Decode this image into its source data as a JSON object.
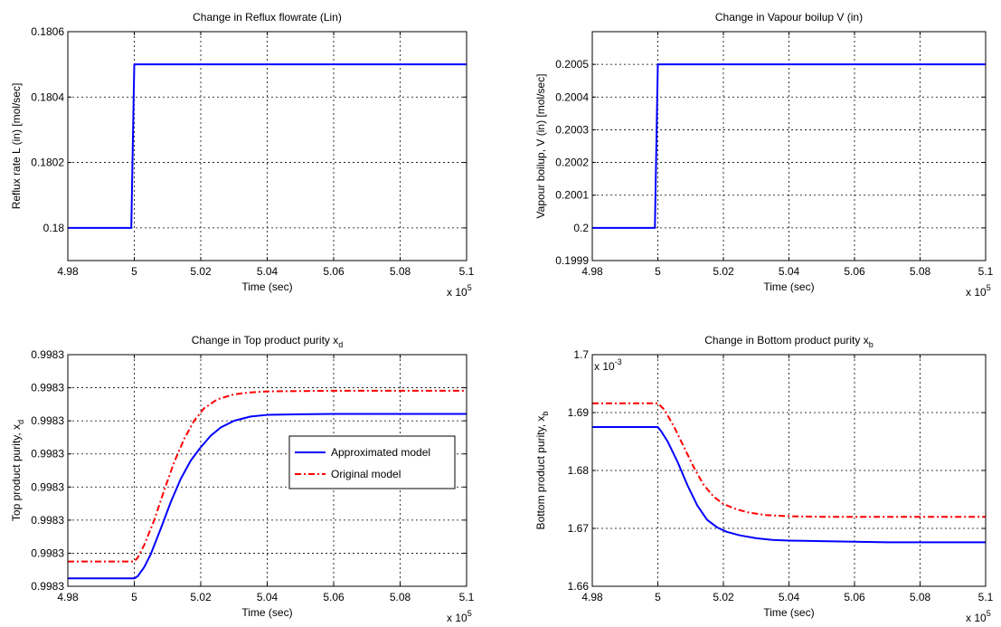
{
  "chart_data": [
    {
      "type": "line",
      "title": "Change in Reflux flowrate (Lin)",
      "xlabel": "Time (sec)",
      "ylabel": "Reflux rate L (in) [mol/sec]",
      "x_exponent": "x 10",
      "x_exponent_power": "5",
      "xlim": [
        4.98,
        5.1
      ],
      "ylim": [
        0.1799,
        0.1806
      ],
      "xticks": [
        4.98,
        5,
        5.02,
        5.04,
        5.06,
        5.08,
        5.1
      ],
      "xtick_labels": [
        "4.98",
        "5",
        "5.02",
        "5.04",
        "5.06",
        "5.08",
        "5.1"
      ],
      "yticks": [
        0.18,
        0.1802,
        0.1804,
        0.1806
      ],
      "ytick_labels": [
        "0.18",
        "0.1802",
        "0.1804",
        "0.1806"
      ],
      "grid": true,
      "series": [
        {
          "color": "#0000ff",
          "style": "solid",
          "x": [
            4.98,
            4.9991,
            5.0,
            5.1
          ],
          "y": [
            0.18,
            0.18,
            0.1805,
            0.1805
          ]
        }
      ]
    },
    {
      "type": "line",
      "title": "Change in Vapour boilup V (in)",
      "xlabel": "Time (sec)",
      "ylabel": "Vapour boilup, V (in) [mol/sec]",
      "x_exponent": "x 10",
      "x_exponent_power": "5",
      "xlim": [
        4.98,
        5.1
      ],
      "ylim": [
        0.1999,
        0.2006
      ],
      "xticks": [
        4.98,
        5,
        5.02,
        5.04,
        5.06,
        5.08,
        5.1
      ],
      "xtick_labels": [
        "4.98",
        "5",
        "5.02",
        "5.04",
        "5.06",
        "5.08",
        "5.1"
      ],
      "yticks": [
        0.1999,
        0.2,
        0.2001,
        0.2002,
        0.2003,
        0.2004,
        0.2005
      ],
      "ytick_labels": [
        "0.1999",
        "0.2",
        "0.2001",
        "0.2002",
        "0.2003",
        "0.2004",
        "0.2005"
      ],
      "grid": true,
      "series": [
        {
          "color": "#0000ff",
          "style": "solid",
          "x": [
            4.98,
            4.9991,
            5.0,
            5.1
          ],
          "y": [
            0.2,
            0.2,
            0.2005,
            0.2005
          ]
        }
      ]
    },
    {
      "type": "line",
      "title": "Change in Top product purity x",
      "title_sub": "d",
      "xlabel": "Time (sec)",
      "ylabel": "Top product purity, x",
      "ylabel_sub": "d",
      "x_exponent": "x 10",
      "x_exponent_power": "5",
      "xlim": [
        4.98,
        5.1
      ],
      "ylim": [
        0,
        7
      ],
      "xticks": [
        4.98,
        5,
        5.02,
        5.04,
        5.06,
        5.08,
        5.1
      ],
      "xtick_labels": [
        "4.98",
        "5",
        "5.02",
        "5.04",
        "5.06",
        "5.08",
        "5.1"
      ],
      "yticks": [
        0,
        1,
        2,
        3,
        4,
        5,
        6,
        7
      ],
      "ytick_labels": [
        "0.9983",
        "0.9983",
        "0.9983",
        "0.9983",
        "0.9983",
        "0.9983",
        "0.9983",
        "0.9983"
      ],
      "grid": true,
      "legend": {
        "position": "center-right",
        "entries": [
          "Approximated model",
          "Original model"
        ]
      },
      "series": [
        {
          "name": "Approximated model",
          "color": "#0000ff",
          "style": "solid",
          "x": [
            4.98,
            5.0,
            5.001,
            5.003,
            5.005,
            5.008,
            5.011,
            5.014,
            5.017,
            5.02,
            5.023,
            5.026,
            5.03,
            5.035,
            5.04,
            5.05,
            5.06,
            5.1
          ],
          "y": [
            0.24,
            0.24,
            0.3,
            0.58,
            0.98,
            1.75,
            2.55,
            3.25,
            3.8,
            4.2,
            4.55,
            4.8,
            5.0,
            5.13,
            5.18,
            5.2,
            5.21,
            5.21
          ]
        },
        {
          "name": "Original model",
          "color": "#ff0000",
          "style": "dashdot",
          "x": [
            4.98,
            5.0,
            5.001,
            5.003,
            5.006,
            5.009,
            5.012,
            5.015,
            5.018,
            5.021,
            5.025,
            5.03,
            5.035,
            5.04,
            5.05,
            5.06,
            5.1
          ],
          "y": [
            0.75,
            0.75,
            0.86,
            1.25,
            2.0,
            2.9,
            3.75,
            4.45,
            5.0,
            5.38,
            5.65,
            5.8,
            5.86,
            5.89,
            5.9,
            5.91,
            5.91
          ]
        }
      ]
    },
    {
      "type": "line",
      "title": "Change in Bottom product purity x",
      "title_sub": "b",
      "xlabel": "Time (sec)",
      "ylabel": "Bottom product purity, x",
      "ylabel_sub": "b",
      "x_exponent": "x 10",
      "x_exponent_power": "5",
      "y_exponent": "x 10",
      "y_exponent_power": "-3",
      "xlim": [
        4.98,
        5.1
      ],
      "ylim": [
        1.66,
        1.7
      ],
      "xticks": [
        4.98,
        5,
        5.02,
        5.04,
        5.06,
        5.08,
        5.1
      ],
      "xtick_labels": [
        "4.98",
        "5",
        "5.02",
        "5.04",
        "5.06",
        "5.08",
        "5.1"
      ],
      "yticks": [
        1.66,
        1.67,
        1.68,
        1.69,
        1.7
      ],
      "ytick_labels": [
        "1.66",
        "1.67",
        "1.68",
        "1.69",
        "1.7"
      ],
      "grid": true,
      "series": [
        {
          "name": "Approximated model",
          "color": "#0000ff",
          "style": "solid",
          "x": [
            4.98,
            5.0,
            5.001,
            5.003,
            5.006,
            5.009,
            5.012,
            5.015,
            5.018,
            5.021,
            5.025,
            5.03,
            5.035,
            5.04,
            5.05,
            5.06,
            5.07,
            5.1
          ],
          "y": [
            1.6875,
            1.6875,
            1.6868,
            1.685,
            1.6815,
            1.6775,
            1.674,
            1.6715,
            1.6702,
            1.6694,
            1.6688,
            1.6683,
            1.668,
            1.6679,
            1.6678,
            1.6677,
            1.6676,
            1.6676
          ]
        },
        {
          "name": "Original model",
          "color": "#ff0000",
          "style": "dashdot",
          "x": [
            4.98,
            5.0,
            5.002,
            5.005,
            5.008,
            5.011,
            5.014,
            5.017,
            5.02,
            5.024,
            5.028,
            5.033,
            5.04,
            5.05,
            5.06,
            5.1
          ],
          "y": [
            1.6916,
            1.6916,
            1.6905,
            1.6875,
            1.684,
            1.6805,
            1.6775,
            1.6755,
            1.6742,
            1.6733,
            1.6727,
            1.6723,
            1.6721,
            1.672,
            1.672,
            1.672
          ]
        }
      ]
    }
  ]
}
